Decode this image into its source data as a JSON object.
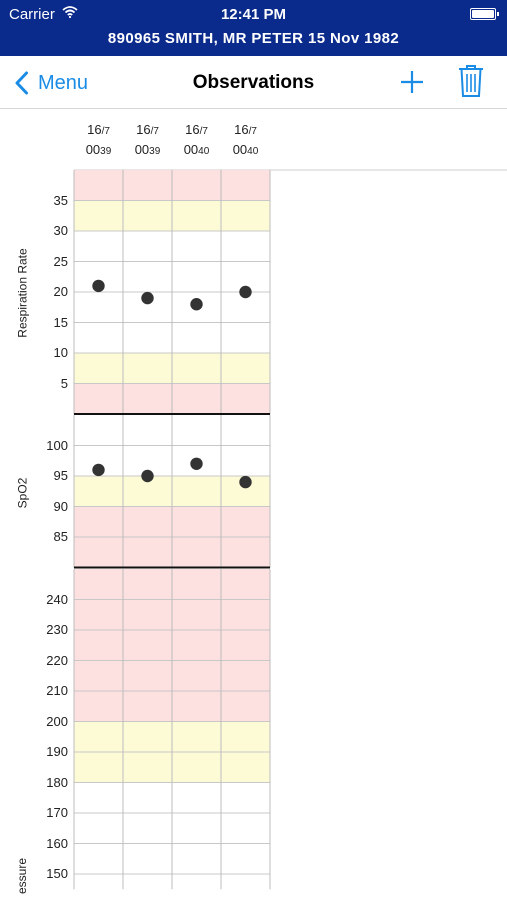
{
  "status_bar": {
    "carrier": "Carrier",
    "time": "12:41 PM"
  },
  "patient_banner": {
    "text": "890965  SMITH, MR PETER  15 Nov 1982"
  },
  "nav": {
    "back_label": "Menu",
    "title": "Observations",
    "add_icon": "plus-icon",
    "delete_icon": "trash-icon",
    "accent_color": "#1a8ce6"
  },
  "columns": [
    {
      "date_day": "16",
      "date_month": "/7",
      "time_hour": "00",
      "time_min": "39"
    },
    {
      "date_day": "16",
      "date_month": "/7",
      "time_hour": "00",
      "time_min": "39"
    },
    {
      "date_day": "16",
      "date_month": "/7",
      "time_hour": "00",
      "time_min": "40"
    },
    {
      "date_day": "16",
      "date_month": "/7",
      "time_hour": "00",
      "time_min": "40"
    }
  ],
  "zone_colors": {
    "red": "#fde0e0",
    "yellow": "#fdfbd6",
    "white": "#ffffff"
  },
  "chart_data": [
    {
      "type": "scatter",
      "ylabel": "Respiration Rate",
      "yticks": [
        35,
        30,
        25,
        20,
        15,
        10,
        5
      ],
      "ylim": [
        0,
        40
      ],
      "zones": [
        {
          "from": 35,
          "to": 40,
          "color": "red"
        },
        {
          "from": 30,
          "to": 35,
          "color": "yellow"
        },
        {
          "from": 10,
          "to": 30,
          "color": "white"
        },
        {
          "from": 5,
          "to": 10,
          "color": "yellow"
        },
        {
          "from": 0,
          "to": 5,
          "color": "red"
        }
      ],
      "values": [
        21,
        19,
        18,
        20
      ]
    },
    {
      "type": "scatter",
      "ylabel": "SpO2",
      "yticks": [
        100,
        95,
        90,
        85
      ],
      "ylim": [
        80,
        105
      ],
      "zones": [
        {
          "from": 95,
          "to": 105,
          "color": "white"
        },
        {
          "from": 90,
          "to": 95,
          "color": "yellow"
        },
        {
          "from": 80,
          "to": 90,
          "color": "red"
        }
      ],
      "values": [
        96,
        95,
        97,
        94
      ]
    },
    {
      "type": "scatter",
      "ylabel": "essure",
      "yticks": [
        240,
        230,
        220,
        210,
        200,
        190,
        180,
        170,
        160,
        150
      ],
      "ylim": [
        145,
        250
      ],
      "zones": [
        {
          "from": 200,
          "to": 250,
          "color": "red"
        },
        {
          "from": 180,
          "to": 200,
          "color": "yellow"
        },
        {
          "from": 145,
          "to": 180,
          "color": "white"
        }
      ],
      "values": []
    }
  ]
}
